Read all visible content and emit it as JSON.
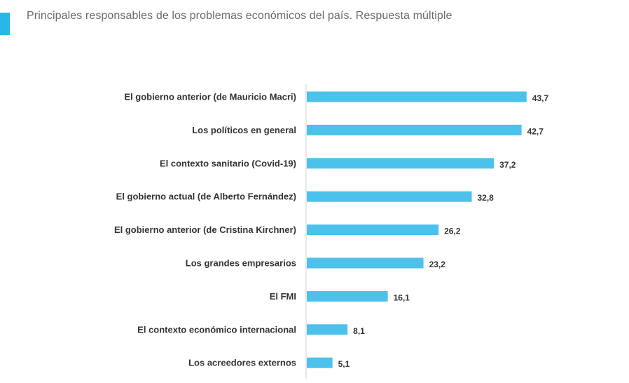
{
  "title": "Principales responsables de los problemas económicos del país. Respuesta múltiple",
  "colors": {
    "accent": "#29b6e8",
    "bar": "#4cc1ec",
    "text": "#333333",
    "axis": "#cfcfcf"
  },
  "chart_data": {
    "type": "bar",
    "orientation": "horizontal",
    "title": "Principales responsables de los problemas económicos del país. Respuesta múltiple",
    "categories": [
      "El gobierno anterior (de Mauricio Macri)",
      "Los políticos en general",
      "El contexto sanitario (Covid-19)",
      "El gobierno actual (de Alberto Fernández)",
      "El gobierno anterior (de Cristina Kirchner)",
      "Los grandes empresarios",
      "El FMI",
      "El contexto económico internacional",
      "Los acreedores externos"
    ],
    "values": [
      43.7,
      42.7,
      37.2,
      32.8,
      26.2,
      23.2,
      16.1,
      8.1,
      5.1
    ],
    "value_labels": [
      "43,7",
      "42,7",
      "37,2",
      "32,8",
      "26,2",
      "23,2",
      "16,1",
      "8,1",
      "5,1"
    ],
    "xlabel": "",
    "ylabel": "",
    "xlim": [
      0,
      45
    ],
    "grid": false,
    "legend": "none"
  }
}
